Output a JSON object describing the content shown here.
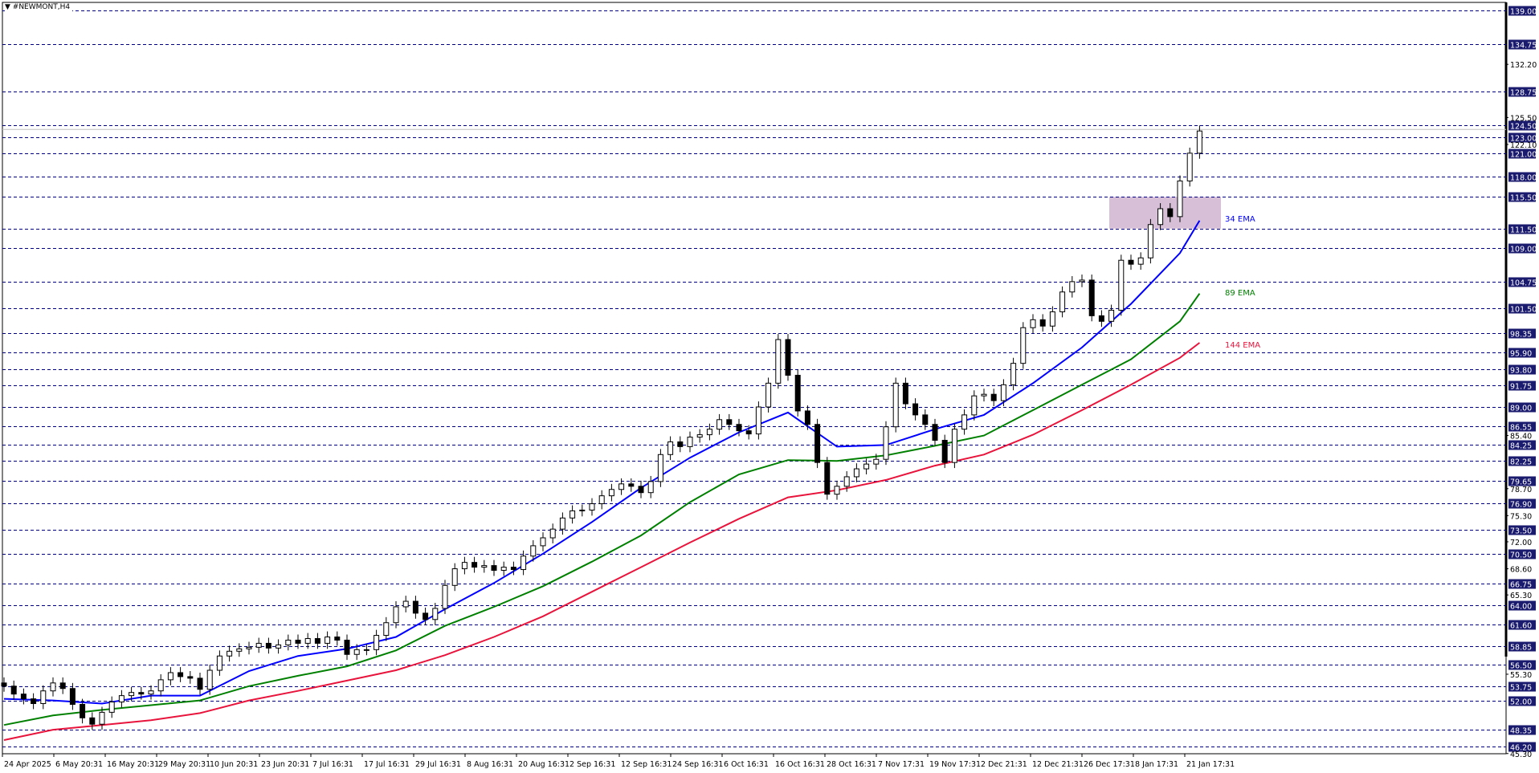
{
  "window": {
    "title": "▼ #NEWMONT,H4"
  },
  "chart_data": {
    "type": "candlestick",
    "symbol": "#NEWMONT",
    "timeframe": "H4",
    "ylim": [
      45.3,
      139.0
    ],
    "grid": false,
    "x_tick_labels": [
      "24 Apr 2025",
      "6 May 20:31",
      "16 May 20:31",
      "29 May 20:31",
      "10 Jun 20:31",
      "23 Jun 20:31",
      "7 Jul 16:31",
      "17 Jul 16:31",
      "29 Jul 16:31",
      "8 Aug 16:31",
      "20 Aug 16:31",
      "2 Sep 16:31",
      "12 Sep 16:31",
      "24 Sep 16:31",
      "6 Oct 16:31",
      "16 Oct 16:31",
      "28 Oct 16:31",
      "7 Nov 17:31",
      "19 Nov 17:31",
      "2 Dec 21:31",
      "12 Dec 21:31",
      "26 Dec 17:31",
      "8 Jan 17:31",
      "21 Jan 17:31"
    ],
    "y_tick_labels": [
      "132.20",
      "125.50",
      "122.10",
      "85.40",
      "78.70",
      "75.30",
      "72.00",
      "68.60",
      "65.30",
      "55.30",
      "45.30"
    ],
    "closes": [
      53.8,
      52.8,
      52.2,
      51.6,
      53.2,
      54.2,
      53.5,
      51.5,
      49.8,
      49.0,
      50.5,
      51.8,
      52.6,
      53.0,
      52.8,
      53.2,
      54.6,
      55.5,
      55.0,
      54.8,
      53.4,
      55.8,
      57.6,
      58.2,
      58.5,
      58.7,
      59.2,
      58.6,
      59.0,
      59.6,
      59.2,
      59.8,
      59.2,
      60.0,
      59.6,
      57.8,
      58.4,
      58.4,
      60.2,
      61.8,
      63.8,
      64.5,
      63.0,
      62.2,
      63.6,
      66.5,
      68.6,
      69.4,
      68.8,
      69.0,
      68.4,
      68.8,
      68.5,
      70.2,
      71.5,
      72.5,
      73.6,
      75.0,
      75.9,
      76.0,
      76.8,
      77.8,
      78.6,
      79.3,
      79.0,
      78.2,
      79.6,
      83.0,
      84.6,
      84.0,
      85.2,
      85.5,
      86.2,
      87.4,
      86.8,
      86.0,
      85.6,
      89.0,
      92.0,
      97.5,
      93.0,
      88.5,
      86.8,
      82.0,
      78.0,
      79.0,
      80.2,
      81.2,
      81.8,
      82.4,
      86.5,
      92.0,
      89.4,
      88.0,
      86.8,
      84.8,
      82.0,
      86.2,
      88.0,
      90.4,
      90.6,
      89.8,
      91.8,
      94.5,
      99.0,
      100.0,
      99.2,
      101.0,
      103.5,
      104.8,
      105.0,
      100.5,
      99.8,
      101.2,
      107.5,
      107.0,
      107.8,
      112.0,
      114.0,
      113.0,
      117.5,
      121.0,
      123.8
    ],
    "current_price": 124.0,
    "series": [
      {
        "name": "34 EMA",
        "color": "#0000ff",
        "sample_every_bars": 5,
        "values": [
          52.2,
          52.0,
          51.6,
          52.6,
          52.6,
          55.7,
          57.6,
          58.5,
          60.0,
          63.5,
          66.8,
          70.5,
          74.5,
          78.8,
          82.6,
          85.8,
          88.3,
          84.0,
          84.2,
          86.2,
          88.0,
          92.0,
          96.5,
          102.0,
          108.4,
          112.5
        ]
      },
      {
        "name": "89 EMA",
        "color": "#008000",
        "sample_every_bars": 5,
        "values": [
          48.9,
          50.1,
          50.8,
          51.4,
          52.0,
          53.8,
          55.1,
          56.3,
          58.3,
          61.4,
          63.8,
          66.4,
          69.5,
          72.8,
          77.0,
          80.5,
          82.3,
          82.2,
          82.9,
          84.1,
          85.4,
          88.6,
          91.8,
          95.0,
          99.8,
          103.3
        ]
      },
      {
        "name": "144 EMA",
        "color": "#e8143c",
        "sample_every_bars": 5,
        "values": [
          47.0,
          48.3,
          48.9,
          49.5,
          50.4,
          52.0,
          53.2,
          54.5,
          55.8,
          57.7,
          60.0,
          62.6,
          65.7,
          68.8,
          71.9,
          74.9,
          77.6,
          78.5,
          79.8,
          81.6,
          83.0,
          85.5,
          88.6,
          91.8,
          95.2,
          97.1
        ]
      }
    ],
    "levels": [
      139.0,
      134.75,
      128.75,
      124.5,
      123.0,
      121.0,
      118.0,
      115.5,
      111.5,
      109.0,
      104.75,
      101.5,
      98.35,
      95.9,
      93.8,
      91.75,
      89.0,
      86.55,
      84.25,
      82.25,
      79.65,
      76.9,
      73.5,
      70.5,
      66.75,
      64.0,
      61.6,
      58.85,
      56.5,
      53.75,
      52.0,
      48.35,
      46.2
    ],
    "level_labels": [
      "139.00",
      "134.75",
      "128.75",
      "124.50",
      "123.00",
      "121.00",
      "118.00",
      "115.50",
      "111.50",
      "109.00",
      "104.75",
      "101.50",
      "98.35",
      "95.90",
      "93.80",
      "91.75",
      "89.00",
      "86.55",
      "84.25",
      "82.25",
      "79.65",
      "76.90",
      "73.50",
      "70.50",
      "66.75",
      "64.00",
      "61.60",
      "58.85",
      "56.50",
      "53.75",
      "52.00",
      "48.35",
      "46.20"
    ],
    "zone": {
      "price_low": 111.5,
      "price_high": 115.5,
      "color": "#d8bfd8"
    },
    "colors": {
      "level_line": "#000080",
      "level_label_bg": "#1a1a6e",
      "bull_body": "#ffffff",
      "bear_body": "#000000"
    }
  }
}
